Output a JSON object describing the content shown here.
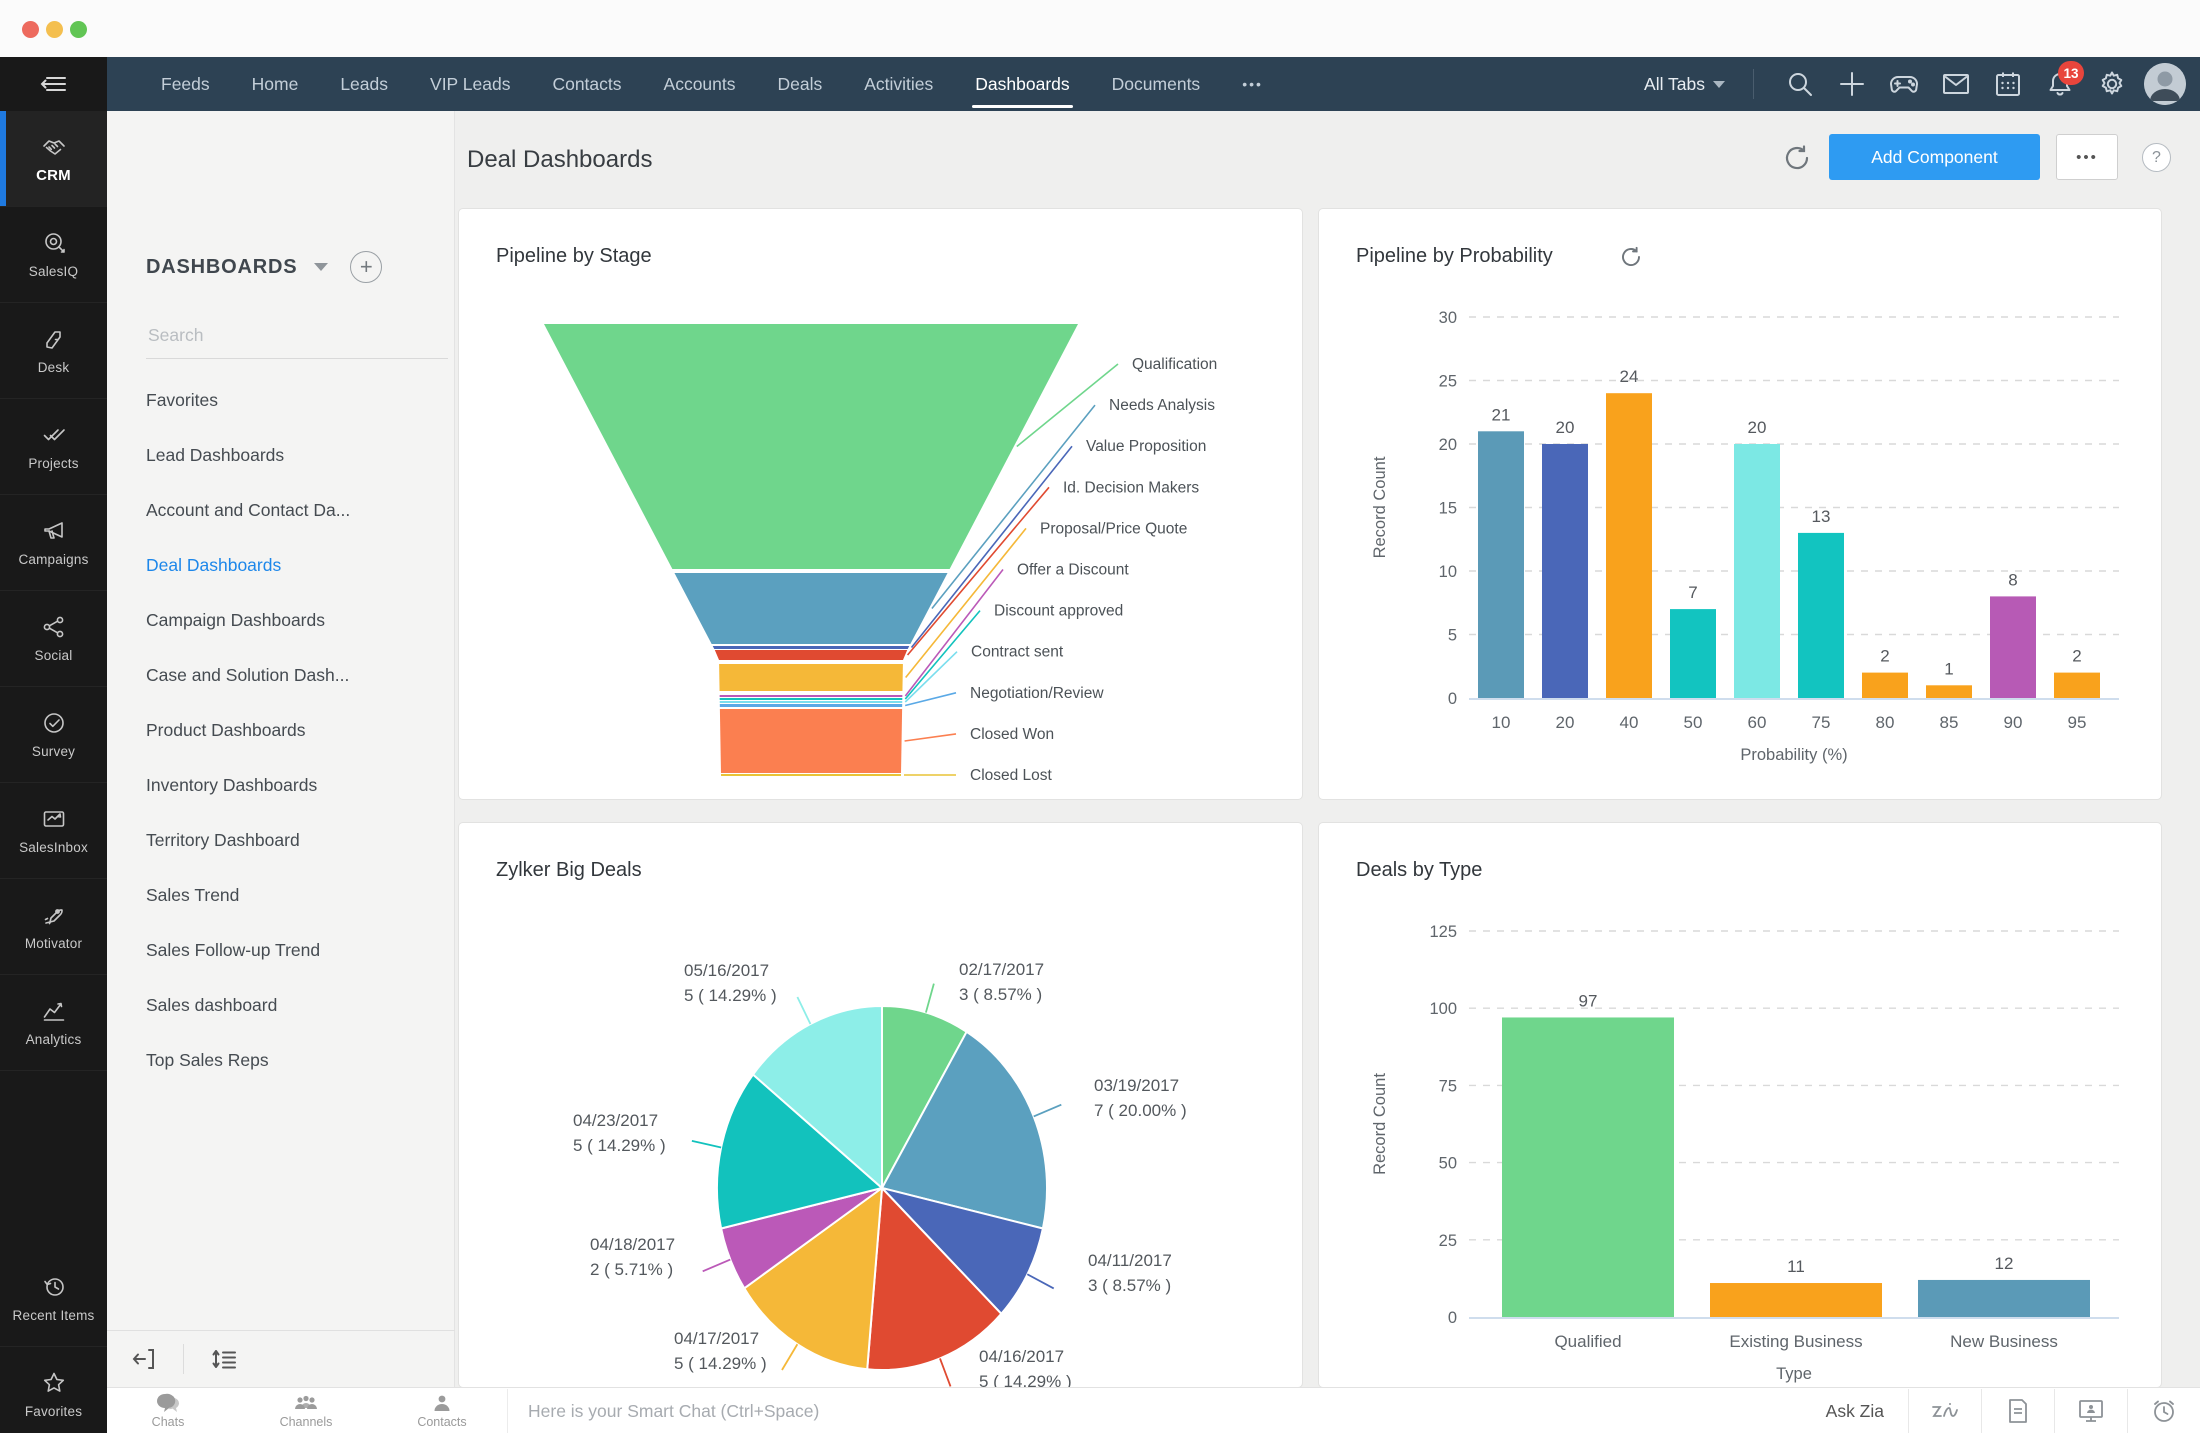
{
  "window": {
    "controls": [
      "close",
      "minimize",
      "zoom"
    ]
  },
  "topnav": {
    "tabs": [
      "Feeds",
      "Home",
      "Leads",
      "VIP Leads",
      "Contacts",
      "Accounts",
      "Deals",
      "Activities",
      "Dashboards",
      "Documents"
    ],
    "active_tab": "Dashboards",
    "more_label": "•••",
    "all_tabs_label": "All Tabs",
    "notification_count": "13",
    "icons": [
      "search-icon",
      "plus-icon",
      "gamepad-icon",
      "mail-icon",
      "calendar-icon",
      "bell-icon",
      "gear-icon",
      "avatar"
    ]
  },
  "app_sidebar": {
    "items": [
      {
        "label": "CRM",
        "icon": "handshake-icon",
        "active": true
      },
      {
        "label": "SalesIQ",
        "icon": "target-icon",
        "active": false
      },
      {
        "label": "Desk",
        "icon": "desk-icon",
        "active": false
      },
      {
        "label": "Projects",
        "icon": "double-check-icon",
        "active": false
      },
      {
        "label": "Campaigns",
        "icon": "megaphone-icon",
        "active": false
      },
      {
        "label": "Social",
        "icon": "share-icon",
        "active": false
      },
      {
        "label": "Survey",
        "icon": "check-circle-icon",
        "active": false
      },
      {
        "label": "SalesInbox",
        "icon": "inbox-trend-icon",
        "active": false
      },
      {
        "label": "Motivator",
        "icon": "rocket-icon",
        "active": false
      },
      {
        "label": "Analytics",
        "icon": "chart-icon",
        "active": false
      },
      {
        "label": "Recent Items",
        "icon": "history-icon",
        "active": false
      },
      {
        "label": "Favorites",
        "icon": "star-icon",
        "active": false
      }
    ]
  },
  "dashboards_panel": {
    "title": "DASHBOARDS",
    "search_placeholder": "Search",
    "items": [
      "Favorites",
      "Lead Dashboards",
      "Account and Contact Da...",
      "Deal Dashboards",
      "Campaign Dashboards",
      "Case and Solution Dash...",
      "Product Dashboards",
      "Inventory Dashboards",
      "Territory Dashboard",
      "Sales Trend",
      "Sales Follow-up Trend",
      "Sales dashboard",
      "Top Sales Reps"
    ],
    "active_item": "Deal Dashboards"
  },
  "main_header": {
    "title": "Deal Dashboards",
    "add_component_label": "Add Component",
    "more_label": "•••",
    "help_label": "?"
  },
  "bottom_bar": {
    "chats_label": "Chats",
    "channels_label": "Channels",
    "contacts_label": "Contacts",
    "smart_chat_placeholder": "Here is your Smart Chat (Ctrl+Space)",
    "ask_zia_label": "Ask Zia"
  },
  "chart_data": [
    {
      "type": "funnel",
      "title": "Pipeline by Stage",
      "stages": [
        {
          "label": "Qualification",
          "color": "#6fd68c",
          "size": 245
        },
        {
          "label": "Needs Analysis",
          "color": "#5ba0bf",
          "size": 71
        },
        {
          "label": "Value Proposition",
          "color": "#4a67b8",
          "size": 3
        },
        {
          "label": "Id. Decision Makers",
          "color": "#e04a31",
          "size": 10
        },
        {
          "label": "Proposal/Price Quote",
          "color": "#f5b838",
          "size": 27
        },
        {
          "label": "Offer a Discount",
          "color": "#bb59b8",
          "size": 2
        },
        {
          "label": "Discount approved",
          "color": "#12c2bd",
          "size": 2
        },
        {
          "label": "Contract sent",
          "color": "#7adeee",
          "size": 2
        },
        {
          "label": "Negotiation/Review",
          "color": "#5aa9e6",
          "size": 3
        },
        {
          "label": "Closed Won",
          "color": "#fb7f50",
          "size": 64
        },
        {
          "label": "Closed Lost",
          "color": "#e8c337",
          "size": 2
        }
      ]
    },
    {
      "type": "bar",
      "title": "Pipeline by Probability",
      "categories": [
        "10",
        "20",
        "40",
        "50",
        "60",
        "75",
        "80",
        "85",
        "90",
        "95"
      ],
      "values": [
        21,
        20,
        24,
        7,
        20,
        13,
        2,
        1,
        8,
        2
      ],
      "colors": [
        "#5b9ab7",
        "#4a67b8",
        "#f9a21c",
        "#12c4c0",
        "#7ce8e4",
        "#12c4c0",
        "#f9a21c",
        "#f9a21c",
        "#b75ab5",
        "#f9a21c"
      ],
      "xlabel": "Probability (%)",
      "ylabel": "Record Count",
      "yticks": [
        0,
        5,
        10,
        15,
        20,
        25,
        30
      ],
      "ylim": [
        0,
        30
      ],
      "grid": "dashed",
      "has_refresh": true
    },
    {
      "type": "pie",
      "title": "Zylker Big Deals",
      "slices": [
        {
          "label": "02/17/2017",
          "value": 3,
          "value_label": "3 ( 8.57% )",
          "color": "#6fd68c"
        },
        {
          "label": "03/19/2017",
          "value": 7,
          "value_label": "7 ( 20.00% )",
          "color": "#5ba0bf"
        },
        {
          "label": "04/11/2017",
          "value": 3,
          "value_label": "3 ( 8.57% )",
          "color": "#4a67b8"
        },
        {
          "label": "04/16/2017",
          "value": 5,
          "value_label": "5 ( 14.29% )",
          "color": "#e04a31"
        },
        {
          "label": "04/17/2017",
          "value": 5,
          "value_label": "5 ( 14.29% )",
          "color": "#f5b838"
        },
        {
          "label": "04/18/2017",
          "value": 2,
          "value_label": "2 ( 5.71% )",
          "color": "#bb59b8"
        },
        {
          "label": "04/23/2017",
          "value": 5,
          "value_label": "5 ( 14.29% )",
          "color": "#12c2bd"
        },
        {
          "label": "05/16/2017",
          "value": 5,
          "value_label": "5 ( 14.29% )",
          "color": "#8deee8"
        }
      ]
    },
    {
      "type": "bar",
      "title": "Deals by Type",
      "categories": [
        "Qualified",
        "Existing Business",
        "New Business"
      ],
      "values": [
        97,
        11,
        12
      ],
      "colors": [
        "#6fd68c",
        "#f9a21c",
        "#5b9ab7"
      ],
      "xlabel": "Type",
      "ylabel": "Record Count",
      "yticks": [
        0,
        25,
        50,
        75,
        100,
        125
      ],
      "ylim": [
        0,
        125
      ],
      "grid": "dashed",
      "has_refresh": false
    }
  ]
}
